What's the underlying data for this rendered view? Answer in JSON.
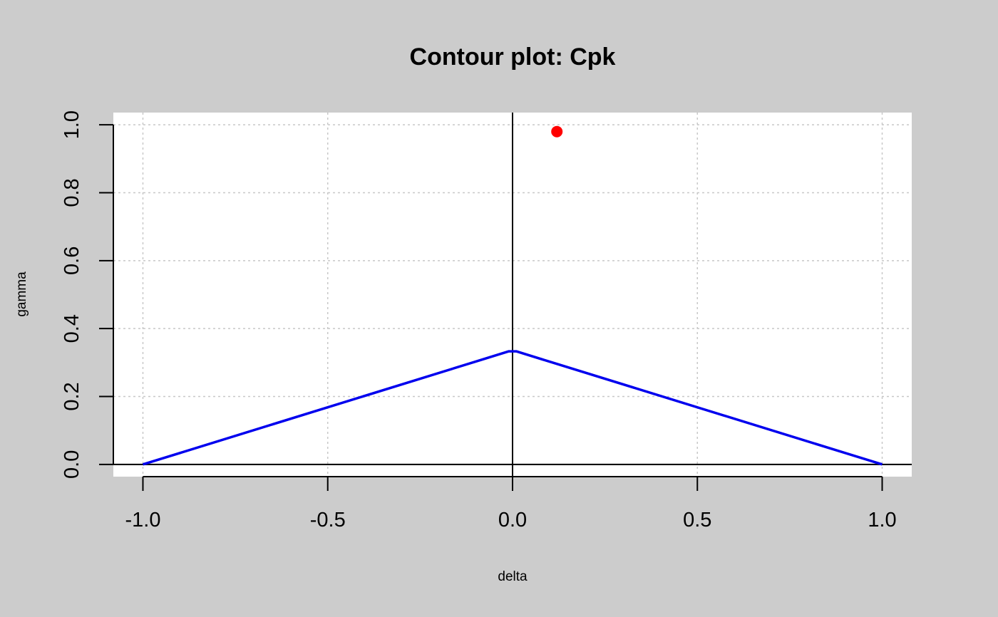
{
  "colors": {
    "background": "#cccccc",
    "plot_background": "#ffffff",
    "grid": "#c8c8c8",
    "axis": "#000000",
    "contour": "#0000ee",
    "point": "#ff0000"
  },
  "chart_data": {
    "type": "line",
    "title": "Contour plot: Cpk",
    "xlabel": "delta",
    "ylabel": "gamma",
    "xlim": [
      -1.08,
      1.08
    ],
    "ylim": [
      -0.036,
      1.036
    ],
    "x_ticks": [
      -1.0,
      -0.5,
      0.0,
      0.5,
      1.0
    ],
    "x_tick_labels": [
      "-1.0",
      "-0.5",
      "0.0",
      "0.5",
      "1.0"
    ],
    "y_ticks": [
      0.0,
      0.2,
      0.4,
      0.6,
      0.8,
      1.0
    ],
    "y_tick_labels": [
      "0.0",
      "0.2",
      "0.4",
      "0.6",
      "0.8",
      "1.0"
    ],
    "grid": true,
    "reference_lines": {
      "x": 0.0,
      "y": 0.0
    },
    "series": [
      {
        "kind": "line",
        "x": [
          -1.0,
          -0.01,
          0.01,
          1.0
        ],
        "y": [
          0.0,
          0.333,
          0.333,
          0.0
        ]
      },
      {
        "kind": "point",
        "x": [
          0.12
        ],
        "y": [
          0.98
        ]
      }
    ]
  }
}
